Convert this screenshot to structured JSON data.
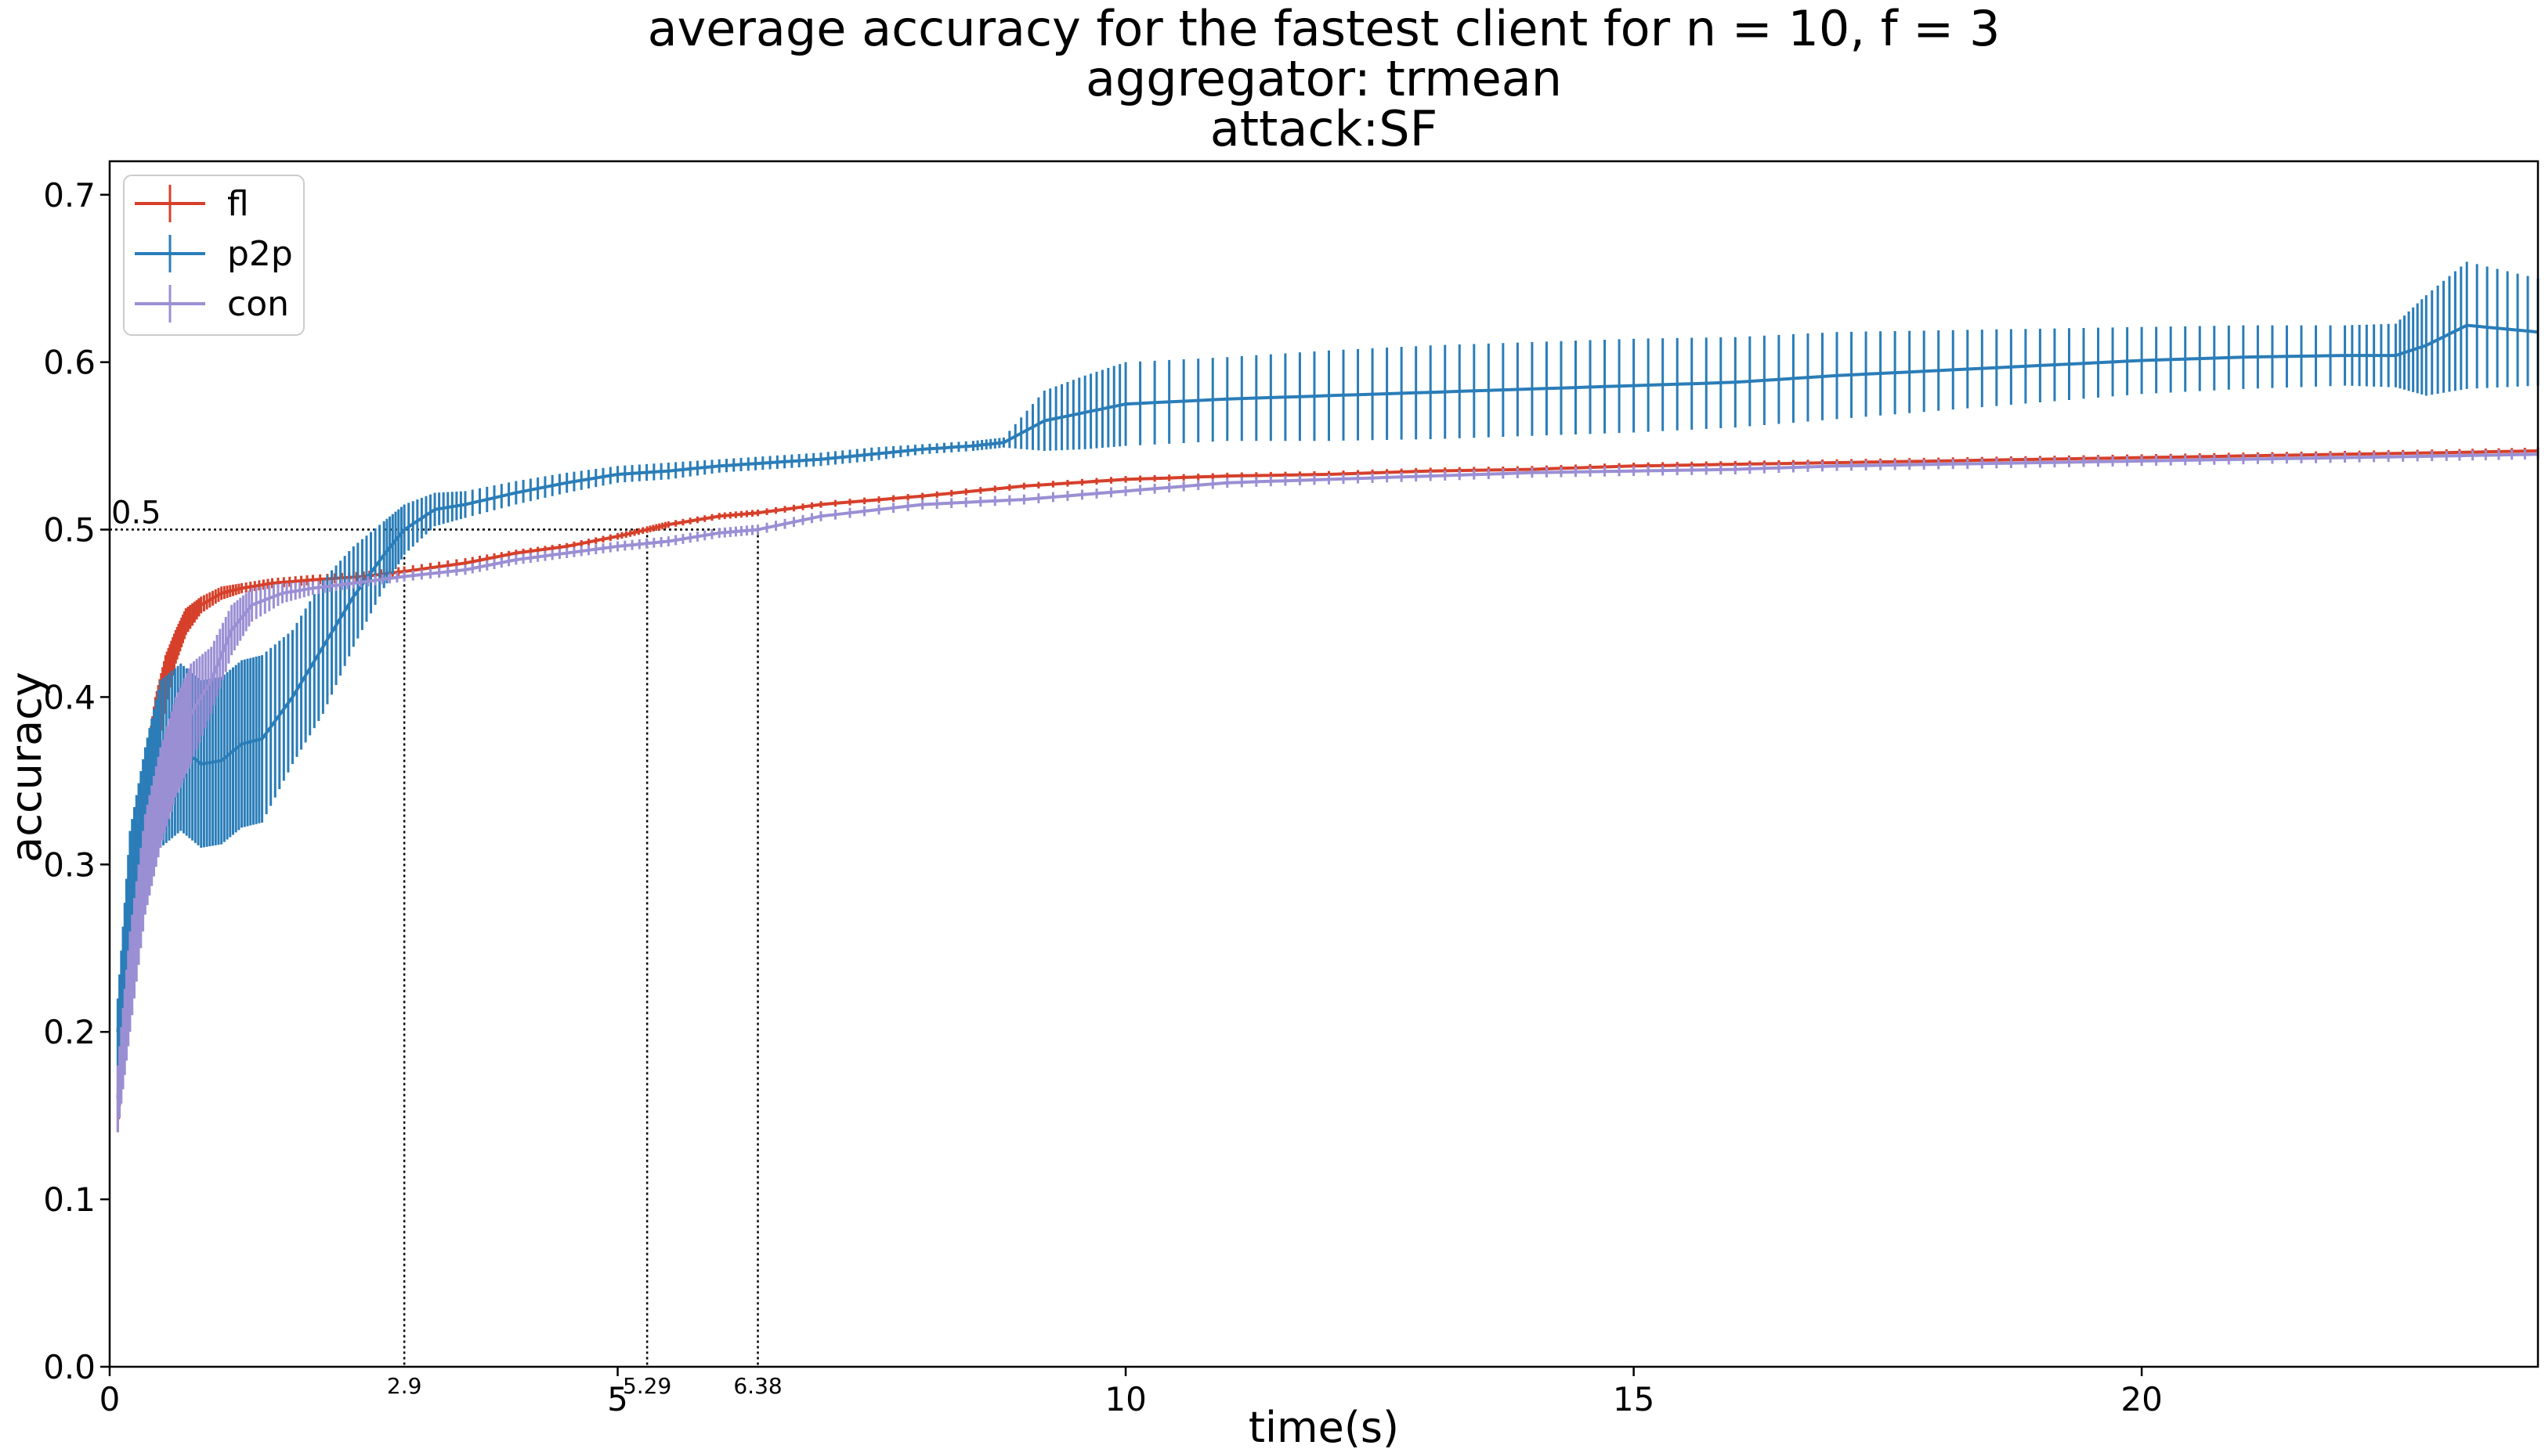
{
  "chart_data": {
    "type": "line",
    "title_lines": [
      "average accuracy for the fastest client for n = 10, f = 3",
      "aggregator: trmean",
      "attack:SF"
    ],
    "xlabel": "time(s)",
    "ylabel": "accuracy",
    "xlim": [
      0,
      23.9
    ],
    "ylim": [
      0,
      0.72
    ],
    "xticks": [
      0,
      5,
      10,
      15,
      20
    ],
    "yticks": [
      0.0,
      0.1,
      0.2,
      0.3,
      0.4,
      0.5,
      0.6,
      0.7
    ],
    "grid": false,
    "legend_placement": "upper left",
    "threshold": {
      "y": 0.5,
      "label": "0.5"
    },
    "crossings": [
      {
        "x": 2.9,
        "label": "2.9"
      },
      {
        "x": 5.29,
        "label": "5.29"
      },
      {
        "x": 6.38,
        "label": "6.38"
      }
    ],
    "series": [
      {
        "name": "fl",
        "color": "#d6402b",
        "x": [
          0.08,
          0.15,
          0.25,
          0.35,
          0.45,
          0.55,
          0.65,
          0.75,
          0.9,
          1.1,
          1.3,
          1.6,
          2.0,
          2.5,
          2.9,
          3.5,
          4.0,
          4.5,
          5.0,
          5.29,
          5.5,
          6.0,
          6.38,
          7.0,
          8.0,
          9.0,
          10.0,
          11.0,
          12.0,
          13.0,
          14.0,
          15.0,
          16.0,
          17.0,
          18.0,
          19.0,
          20.0,
          21.0,
          22.0,
          23.0,
          23.9
        ],
        "y": [
          0.16,
          0.22,
          0.29,
          0.34,
          0.38,
          0.41,
          0.43,
          0.445,
          0.455,
          0.462,
          0.465,
          0.468,
          0.47,
          0.472,
          0.475,
          0.48,
          0.486,
          0.49,
          0.496,
          0.5,
          0.503,
          0.508,
          0.51,
          0.515,
          0.52,
          0.526,
          0.53,
          0.532,
          0.533,
          0.535,
          0.536,
          0.538,
          0.539,
          0.54,
          0.541,
          0.542,
          0.543,
          0.544,
          0.545,
          0.546,
          0.547
        ],
        "err": [
          0.02,
          0.025,
          0.02,
          0.02,
          0.02,
          0.015,
          0.01,
          0.008,
          0.005,
          0.004,
          0.003,
          0.003,
          0.003,
          0.003,
          0.003,
          0.003,
          0.002,
          0.002,
          0.002,
          0.002,
          0.002,
          0.002,
          0.002,
          0.002,
          0.002,
          0.002,
          0.002,
          0.002,
          0.002,
          0.002,
          0.002,
          0.002,
          0.002,
          0.002,
          0.002,
          0.002,
          0.002,
          0.002,
          0.002,
          0.002,
          0.002
        ]
      },
      {
        "name": "p2p",
        "color": "#2a7db8",
        "x": [
          0.08,
          0.2,
          0.35,
          0.5,
          0.7,
          0.9,
          1.1,
          1.3,
          1.5,
          1.8,
          2.1,
          2.4,
          2.7,
          2.9,
          3.2,
          3.5,
          4.0,
          4.5,
          5.0,
          5.5,
          6.0,
          6.5,
          7.0,
          7.5,
          8.0,
          8.5,
          8.8,
          9.2,
          9.6,
          10.0,
          11.0,
          12.0,
          13.0,
          14.0,
          15.0,
          16.0,
          17.0,
          18.0,
          19.0,
          20.0,
          21.0,
          22.0,
          22.5,
          22.8,
          23.2,
          23.9
        ],
        "y": [
          0.2,
          0.28,
          0.33,
          0.36,
          0.37,
          0.36,
          0.362,
          0.372,
          0.375,
          0.4,
          0.43,
          0.46,
          0.485,
          0.5,
          0.512,
          0.515,
          0.522,
          0.528,
          0.533,
          0.535,
          0.538,
          0.54,
          0.542,
          0.545,
          0.548,
          0.55,
          0.552,
          0.565,
          0.57,
          0.575,
          0.578,
          0.58,
          0.582,
          0.584,
          0.586,
          0.588,
          0.592,
          0.595,
          0.598,
          0.601,
          0.603,
          0.604,
          0.604,
          0.61,
          0.622,
          0.618
        ],
        "err": [
          0.02,
          0.04,
          0.04,
          0.05,
          0.05,
          0.05,
          0.05,
          0.05,
          0.05,
          0.04,
          0.04,
          0.03,
          0.02,
          0.015,
          0.01,
          0.008,
          0.007,
          0.006,
          0.005,
          0.005,
          0.004,
          0.004,
          0.004,
          0.004,
          0.003,
          0.003,
          0.003,
          0.018,
          0.022,
          0.025,
          0.025,
          0.027,
          0.028,
          0.028,
          0.028,
          0.027,
          0.026,
          0.024,
          0.022,
          0.02,
          0.019,
          0.018,
          0.019,
          0.03,
          0.038,
          0.032
        ]
      },
      {
        "name": "con",
        "color": "#9b8fd4",
        "x": [
          0.08,
          0.2,
          0.35,
          0.5,
          0.65,
          0.8,
          1.0,
          1.2,
          1.4,
          1.7,
          2.0,
          2.4,
          2.9,
          3.5,
          4.0,
          4.5,
          5.0,
          5.5,
          6.0,
          6.38,
          7.0,
          8.0,
          9.0,
          10.0,
          11.0,
          12.0,
          13.0,
          14.0,
          15.0,
          16.0,
          17.0,
          18.0,
          19.0,
          20.0,
          21.0,
          22.0,
          23.0,
          23.9
        ],
        "y": [
          0.16,
          0.23,
          0.3,
          0.34,
          0.37,
          0.39,
          0.41,
          0.44,
          0.455,
          0.462,
          0.465,
          0.468,
          0.472,
          0.476,
          0.482,
          0.486,
          0.49,
          0.493,
          0.498,
          0.5,
          0.508,
          0.515,
          0.518,
          0.523,
          0.528,
          0.53,
          0.532,
          0.534,
          0.535,
          0.536,
          0.538,
          0.539,
          0.54,
          0.541,
          0.542,
          0.543,
          0.544,
          0.545
        ],
        "err": [
          0.02,
          0.03,
          0.03,
          0.03,
          0.03,
          0.03,
          0.02,
          0.015,
          0.01,
          0.006,
          0.004,
          0.003,
          0.003,
          0.003,
          0.003,
          0.003,
          0.003,
          0.003,
          0.003,
          0.003,
          0.003,
          0.003,
          0.003,
          0.003,
          0.003,
          0.003,
          0.003,
          0.003,
          0.003,
          0.003,
          0.003,
          0.003,
          0.003,
          0.003,
          0.003,
          0.003,
          0.003,
          0.003
        ]
      }
    ]
  }
}
